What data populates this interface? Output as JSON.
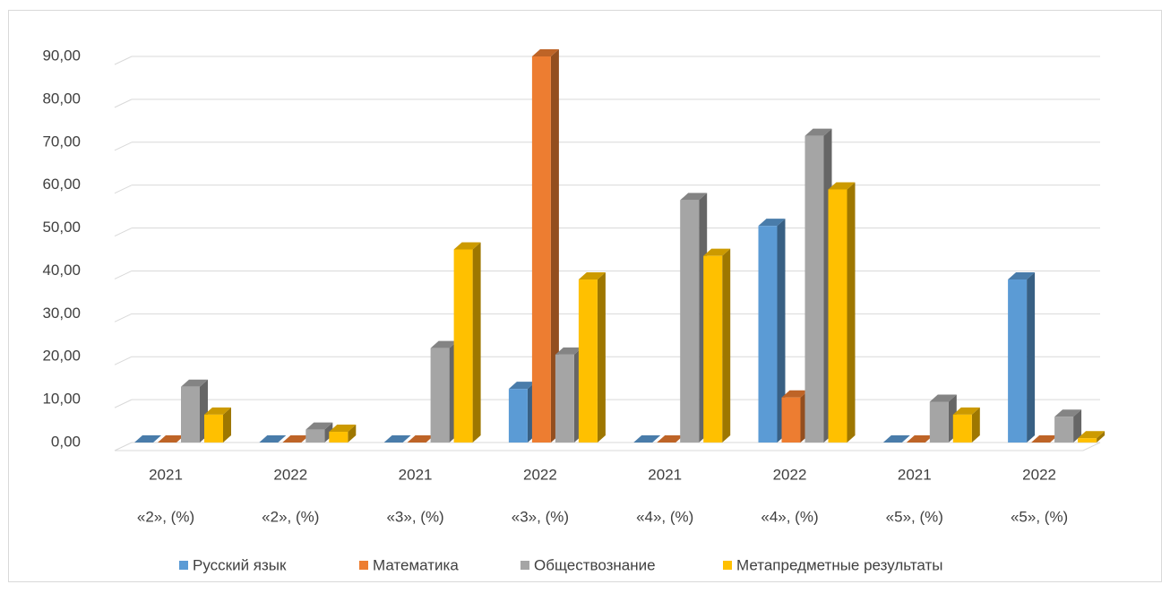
{
  "chart_data": {
    "type": "bar3d",
    "categories": [
      "2021",
      "2022",
      "2021",
      "2022",
      "2021",
      "2022",
      "2021",
      "2022"
    ],
    "groups": [
      "«2», (%)",
      "«2», (%)",
      "«3», (%)",
      "«3», (%)",
      "«4», (%)",
      "«4», (%)",
      "«5», (%)",
      "«5», (%)"
    ],
    "series": [
      {
        "name": "Русский язык",
        "color": "#5b9bd5",
        "values": [
          0,
          0,
          0,
          12.5,
          0,
          50.5,
          0,
          38
        ]
      },
      {
        "name": "Математика",
        "color": "#ed7d31",
        "values": [
          0,
          0,
          0,
          90,
          0,
          10.5,
          0,
          0
        ]
      },
      {
        "name": "Обществознание",
        "color": "#a5a5a5",
        "values": [
          13,
          3,
          22,
          20.5,
          56.5,
          71.5,
          9.5,
          6
        ]
      },
      {
        "name": "Метапредметные результаты",
        "color": "#ffc000",
        "values": [
          6.5,
          2.5,
          45,
          38,
          43.5,
          59,
          6.5,
          1
        ]
      }
    ],
    "ylim": [
      0,
      90
    ],
    "yticks": [
      {
        "value": 0,
        "label": "0,00"
      },
      {
        "value": 10,
        "label": "10,00"
      },
      {
        "value": 20,
        "label": "20,00"
      },
      {
        "value": 30,
        "label": "30,00"
      },
      {
        "value": 40,
        "label": "40,00"
      },
      {
        "value": 50,
        "label": "50,00"
      },
      {
        "value": 60,
        "label": "60,00"
      },
      {
        "value": 70,
        "label": "70,00"
      },
      {
        "value": 80,
        "label": "80,00"
      },
      {
        "value": 90,
        "label": "90,00"
      }
    ],
    "grid": true,
    "legend": "bottom"
  }
}
